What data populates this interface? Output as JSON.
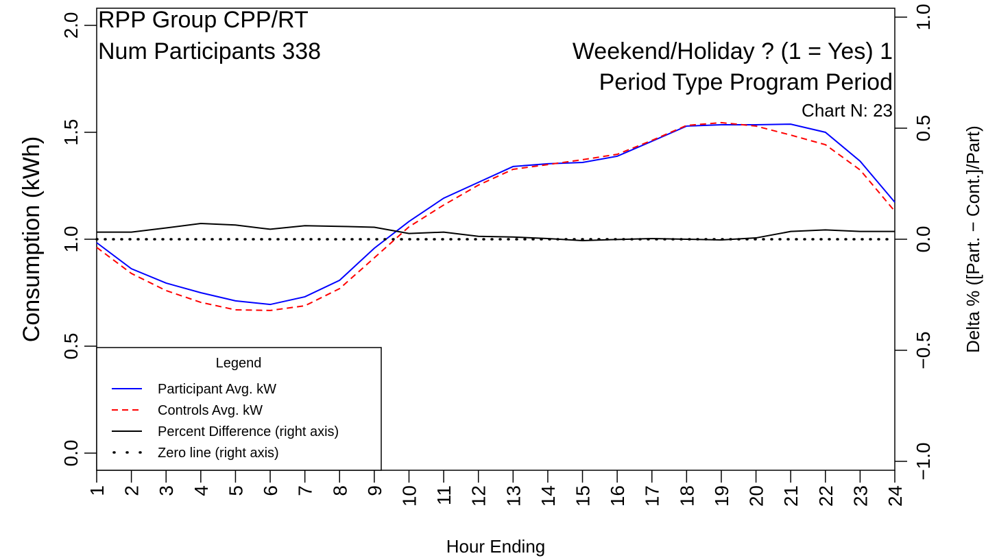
{
  "chart_data": {
    "type": "line",
    "title": "RPP Group CPP/RT",
    "subtitle": "Num Participants 338",
    "annotations": [
      "Weekend/Holiday ? (1 = Yes) 1",
      "Period Type Program Period",
      "Chart N: 23"
    ],
    "x_label": "Hour Ending",
    "y_label": "Consumption (kWh)",
    "y2_label": "Delta % ([Part. − Cont.]/Part)",
    "legend_title": "Legend",
    "legend": "bottom-left",
    "x": [
      1,
      2,
      3,
      4,
      5,
      6,
      7,
      8,
      9,
      10,
      11,
      12,
      13,
      14,
      15,
      16,
      17,
      18,
      19,
      20,
      21,
      22,
      23,
      24
    ],
    "xlim": [
      1,
      24
    ],
    "xticks": [
      1,
      2,
      3,
      4,
      5,
      6,
      7,
      8,
      9,
      10,
      11,
      12,
      13,
      14,
      15,
      16,
      17,
      18,
      19,
      20,
      21,
      22,
      23,
      24
    ],
    "ylim": [
      -0.08,
      2.08
    ],
    "yticks": [
      {
        "value": 0,
        "label": "0.0"
      },
      0.5,
      {
        "value": 1,
        "label": "1.0"
      },
      1.5,
      {
        "value": 2,
        "label": "2.0"
      }
    ],
    "y2lim": [
      -1.04,
      1.04
    ],
    "y2ticks": [
      {
        "value": -1,
        "label": "−1.0"
      },
      {
        "value": -0.5,
        "label": "−0.5"
      },
      {
        "value": 0,
        "label": "0.0"
      },
      0.5,
      {
        "value": 1,
        "label": "1.0"
      }
    ],
    "series": [
      {
        "name": "Participant Avg. kW",
        "color": "#0000ff",
        "dash": "solid",
        "values": [
          0.984,
          0.862,
          0.795,
          0.75,
          0.712,
          0.695,
          0.731,
          0.808,
          0.958,
          1.083,
          1.192,
          1.266,
          1.34,
          1.353,
          1.359,
          1.388,
          1.458,
          1.529,
          1.535,
          1.535,
          1.538,
          1.5,
          1.365,
          1.173
        ]
      },
      {
        "name": "Controls Avg. kW",
        "color": "#ff0000",
        "dash": "dashed",
        "values": [
          0.962,
          0.84,
          0.76,
          0.705,
          0.67,
          0.667,
          0.689,
          0.769,
          0.913,
          1.058,
          1.16,
          1.253,
          1.327,
          1.349,
          1.372,
          1.397,
          1.462,
          1.532,
          1.545,
          1.529,
          1.487,
          1.442,
          1.324,
          1.131
        ]
      },
      {
        "name": "Percent Difference (right axis)",
        "color": "#000000",
        "dash": "solid",
        "axis": "y2",
        "values": [
          0.032,
          0.032,
          0.051,
          0.071,
          0.064,
          0.045,
          0.061,
          0.058,
          0.054,
          0.026,
          0.032,
          0.013,
          0.01,
          0.003,
          -0.006,
          -0.001,
          0.003,
          0,
          -0.003,
          0.006,
          0.035,
          0.042,
          0.035,
          0.035
        ]
      },
      {
        "name": "Zero line (right axis)",
        "color": "#000000",
        "dash": "dotted",
        "axis": "y2",
        "values": [
          0,
          0,
          0,
          0,
          0,
          0,
          0,
          0,
          0,
          0,
          0,
          0,
          0,
          0,
          0,
          0,
          0,
          0,
          0,
          0,
          0,
          0,
          0,
          0
        ]
      }
    ]
  }
}
